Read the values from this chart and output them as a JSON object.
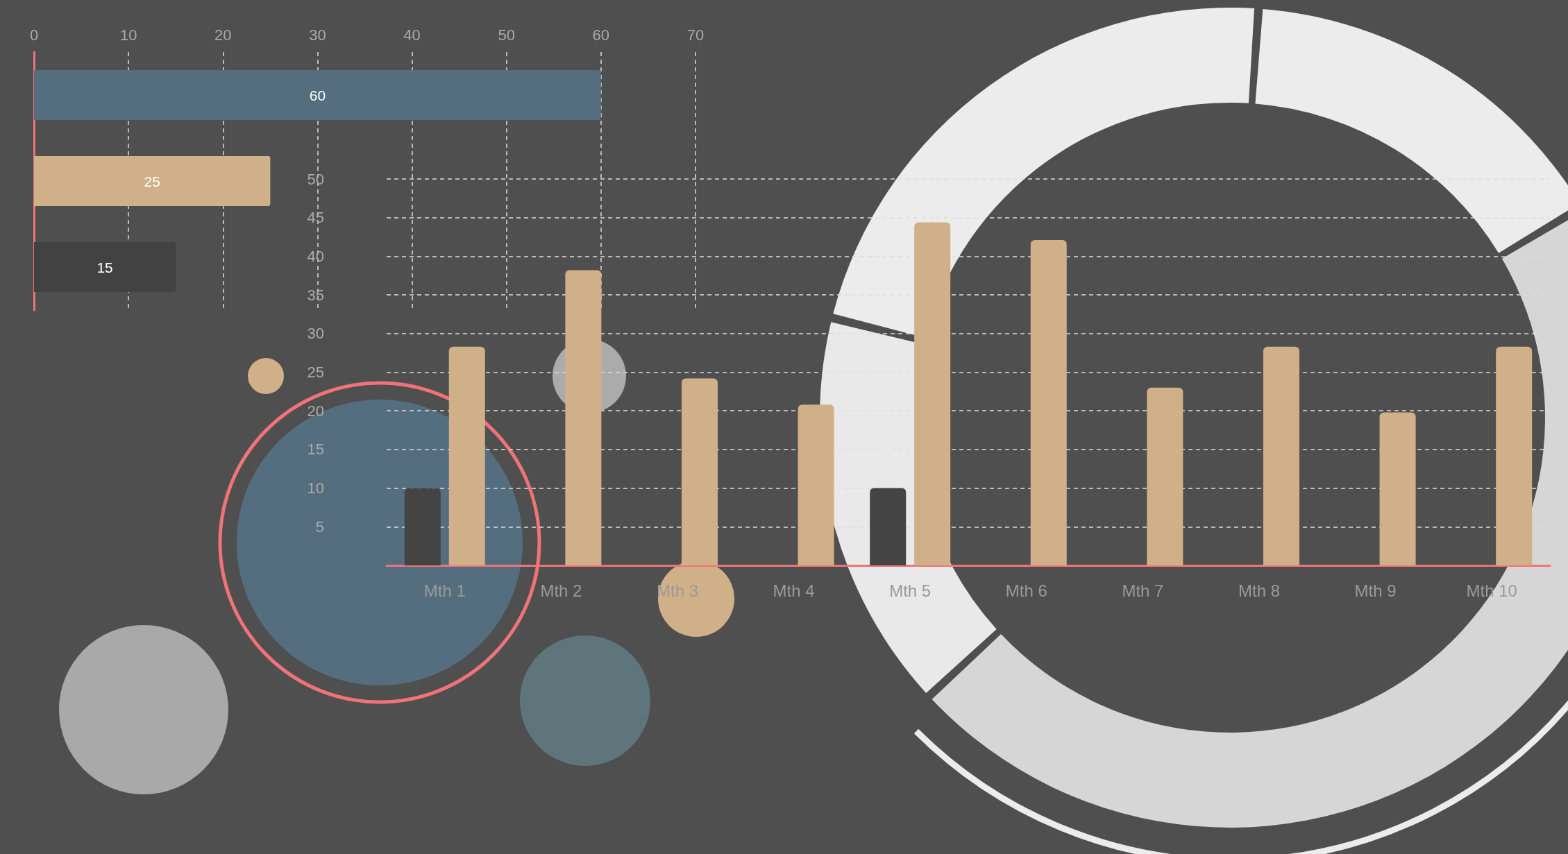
{
  "chart_data": [
    {
      "type": "bar",
      "orientation": "horizontal",
      "categories": [
        null,
        null,
        null
      ],
      "values": [
        60,
        25,
        15
      ],
      "colors": [
        "#546e7f",
        "#d0b088",
        "#424242"
      ],
      "xlim": [
        0,
        70
      ],
      "xticks": [
        0,
        10,
        20,
        30,
        40,
        50,
        60,
        70
      ],
      "grid": "x",
      "data_labels": true
    },
    {
      "type": "bar",
      "categories": [
        "Mth 1",
        "Mth 2",
        "Mth 3",
        "Mth 4",
        "Mth 5",
        "Mth 6",
        "Mth 7",
        "Mth 8",
        "Mth 9",
        "Mth 10"
      ],
      "series": [
        {
          "color": "#444444",
          "values": [
            10,
            null,
            null,
            null,
            10,
            null,
            null,
            null,
            null,
            null
          ]
        },
        {
          "color": "#d0b088",
          "values": [
            28.3,
            38.2,
            24.2,
            20.8,
            44.4,
            42.1,
            23,
            28.3,
            19.8,
            28.3
          ]
        }
      ],
      "ylim": [
        0,
        50
      ],
      "yticks": [
        5,
        10,
        15,
        20,
        25,
        30,
        35,
        40,
        45,
        50
      ],
      "grid": "y"
    },
    {
      "type": "donut",
      "categories": [
        null,
        null,
        null,
        null
      ],
      "values": [
        15.3,
        46.7,
        15.8,
        22.2
      ],
      "colors": [
        "#ececec",
        "#d6d6d6",
        "#e9e9e9",
        "#ececec"
      ]
    }
  ]
}
